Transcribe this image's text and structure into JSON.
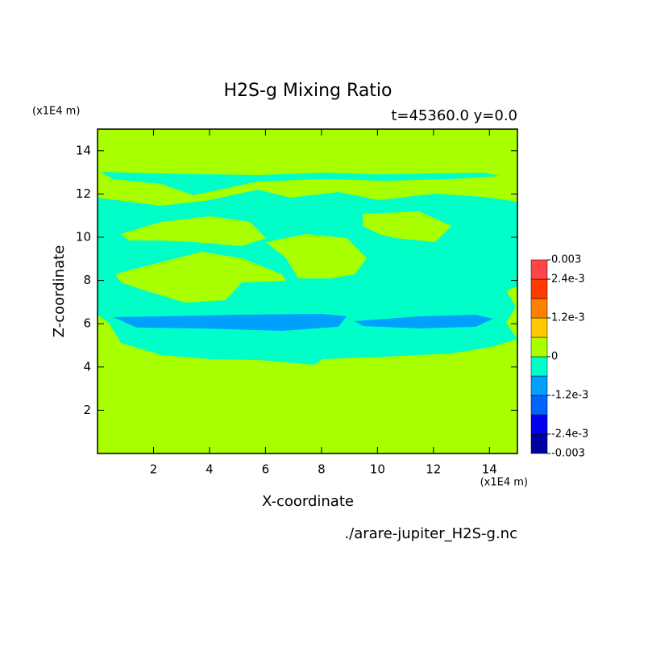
{
  "chart_data": {
    "type": "contour",
    "title": "H2S-g Mixing Ratio",
    "subtitle": "t=45360.0 y=0.0",
    "x_label": "X-coordinate",
    "y_label": "Z-coordinate",
    "x_unit": "(x1E4 m)",
    "y_unit": "(x1E4 m)",
    "source": "./arare-jupiter_H2S-g.nc",
    "xlim": [
      0,
      15
    ],
    "ylim": [
      0,
      15
    ],
    "xticks": [
      2,
      4,
      6,
      8,
      10,
      12,
      14
    ],
    "yticks": [
      2,
      4,
      6,
      8,
      10,
      12,
      14
    ],
    "colorbar_lim": [
      -0.003,
      0.003
    ],
    "colorbar_ticks": [
      0.003,
      {
        "value": 0.0024,
        "label": "2.4e-3"
      },
      {
        "value": 0.0012,
        "label": "1.2e-3"
      },
      0,
      {
        "value": -0.0012,
        "label": "-1.2e-3"
      },
      {
        "value": -0.0024,
        "label": "-2.4e-3"
      },
      -0.003
    ],
    "colors": [
      "#0000a0",
      "#0000f0",
      "#0064ff",
      "#00a0ff",
      "#00ffc8",
      "#a8ff00",
      "#ffc800",
      "#ff8000",
      "#ff3c00",
      "#ff4646"
    ]
  }
}
